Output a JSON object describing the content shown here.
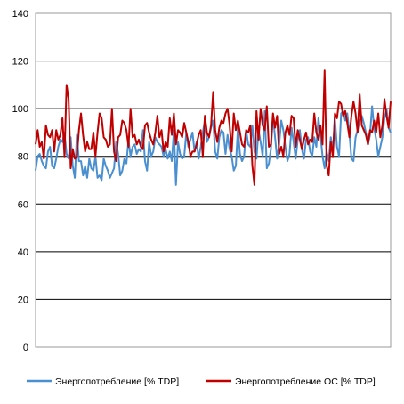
{
  "chart_data": {
    "type": "line",
    "title": "",
    "xlabel": "",
    "ylabel": "",
    "ylim": [
      0,
      140
    ],
    "yticks": [
      0,
      20,
      40,
      60,
      80,
      100,
      120,
      140
    ],
    "grid": "horizontal",
    "legend_position": "bottom",
    "series": [
      {
        "name": "Энергопотребление  [% TDP]",
        "color": "#4a8fcf",
        "values": [
          74,
          80,
          81,
          78,
          76,
          75,
          82,
          84,
          76,
          75,
          79,
          84,
          87,
          86,
          90,
          81,
          79,
          88,
          76,
          71,
          89,
          78,
          78,
          72,
          76,
          71,
          79,
          75,
          74,
          80,
          71,
          72,
          70,
          79,
          76,
          74,
          71,
          73,
          75,
          86,
          81,
          72,
          74,
          79,
          77,
          87,
          80,
          84,
          85,
          81,
          83,
          82,
          91,
          78,
          74,
          86,
          80,
          82,
          88,
          86,
          85,
          84,
          80,
          83,
          79,
          82,
          78,
          91,
          68,
          86,
          81,
          79,
          80,
          90,
          84,
          87,
          90,
          82,
          86,
          79,
          84,
          90,
          95,
          86,
          88,
          92,
          95,
          82,
          79,
          88,
          91,
          90,
          81,
          89,
          83,
          80,
          74,
          76,
          92,
          81,
          78,
          80,
          91,
          85,
          84,
          93,
          82,
          79,
          91,
          86,
          80,
          99,
          75,
          77,
          83,
          97,
          88,
          79,
          85,
          95,
          91,
          84,
          78,
          81,
          92,
          86,
          79,
          87,
          91,
          83,
          79,
          87,
          88,
          82,
          80,
          88,
          84,
          96,
          89,
          80,
          75,
          82,
          78,
          88,
          82,
          96,
          84,
          80,
          98,
          99,
          95,
          98,
          90,
          79,
          78,
          88,
          91,
          95,
          97,
          94,
          90,
          85,
          89,
          101,
          92,
          87,
          80,
          84,
          88,
          96,
          100,
          92,
          90
        ]
      },
      {
        "name": "Энергопотребление  ОС [% TDP]",
        "color": "#c00000",
        "values": [
          85,
          91,
          84,
          86,
          79,
          93,
          89,
          88,
          91,
          82,
          91,
          87,
          89,
          96,
          80,
          110,
          104,
          75,
          83,
          79,
          80,
          91,
          98,
          89,
          82,
          86,
          83,
          83,
          90,
          80,
          90,
          98,
          96,
          88,
          87,
          84,
          85,
          100,
          82,
          78,
          88,
          89,
          95,
          94,
          91,
          84,
          100,
          88,
          89,
          85,
          87,
          84,
          83,
          93,
          94,
          90,
          87,
          85,
          90,
          97,
          88,
          91,
          82,
          86,
          84,
          96,
          89,
          98,
          85,
          91,
          90,
          88,
          94,
          90,
          86,
          80,
          82,
          82,
          85,
          89,
          91,
          80,
          97,
          90,
          88,
          93,
          107,
          91,
          86,
          92,
          95,
          94,
          98,
          100,
          93,
          82,
          98,
          91,
          95,
          90,
          85,
          84,
          91,
          90,
          93,
          76,
          68,
          99,
          87,
          100,
          93,
          91,
          101,
          84,
          85,
          98,
          92,
          97,
          81,
          84,
          80,
          90,
          93,
          89,
          97,
          96,
          84,
          91,
          87,
          83,
          87,
          90,
          85,
          87,
          86,
          98,
          90,
          87,
          93,
          85,
          116,
          76,
          72,
          86,
          80,
          98,
          96,
          103,
          102,
          97,
          99,
          94,
          88,
          97,
          103,
          98,
          90,
          106,
          93,
          91,
          89,
          85,
          91,
          90,
          95,
          90,
          98,
          88,
          93,
          104,
          97,
          92,
          103
        ]
      }
    ]
  }
}
